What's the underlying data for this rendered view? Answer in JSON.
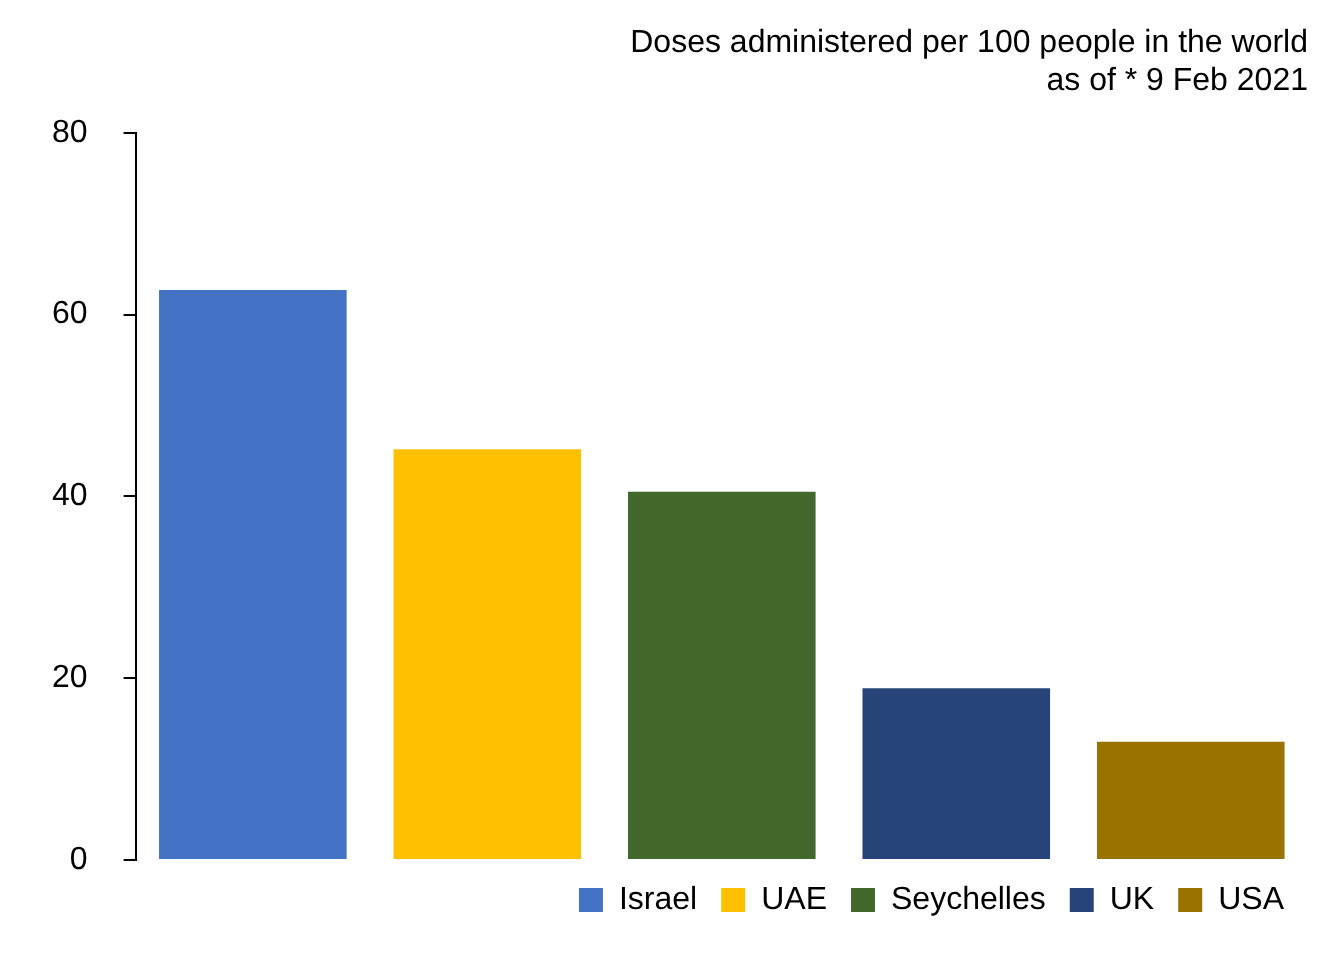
{
  "chart_data": {
    "type": "bar",
    "title": "Doses administered per 100 people in the world",
    "subtitle": "as of * 9 Feb 2021",
    "categories": [
      null,
      null,
      null,
      null,
      null
    ],
    "series": [
      {
        "name": "Israel",
        "color": "#4472c4",
        "values": [
          62.7,
          null,
          null,
          null,
          null
        ]
      },
      {
        "name": "UAE",
        "color": "#ffc000",
        "values": [
          null,
          45.2,
          null,
          null,
          null
        ]
      },
      {
        "name": "Seychelles",
        "color": "#43682b",
        "values": [
          null,
          null,
          40.5,
          null,
          null
        ]
      },
      {
        "name": "UK",
        "color": "#264478",
        "values": [
          null,
          null,
          null,
          18.9,
          null
        ]
      },
      {
        "name": "USA",
        "color": "#997300",
        "values": [
          null,
          null,
          null,
          null,
          13.0
        ]
      }
    ],
    "stacked": true,
    "ylim": [
      0,
      80
    ],
    "yticks": [
      0,
      20,
      40,
      60,
      80
    ],
    "grid": false,
    "legend": "bottom right",
    "tick_labels": "y"
  }
}
